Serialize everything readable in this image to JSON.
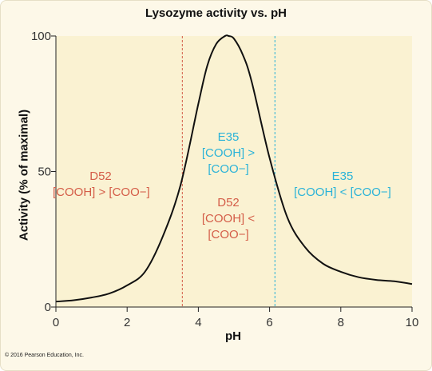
{
  "chart_data": {
    "type": "line",
    "title": "Lysozyme activity vs. pH",
    "xlabel": "pH",
    "ylabel": "Activity (% of maximal)",
    "xlim": [
      0,
      10
    ],
    "ylim": [
      0,
      100
    ],
    "xticks": [
      0,
      2,
      4,
      6,
      8,
      10
    ],
    "yticks": [
      0,
      50,
      100
    ],
    "grid": false,
    "series": [
      {
        "x": [
          0,
          0.5,
          1,
          1.5,
          2,
          2.5,
          3,
          3.5,
          4,
          4.25,
          4.5,
          4.75,
          4.85,
          5,
          5.25,
          5.5,
          6,
          6.5,
          7,
          7.5,
          8,
          8.5,
          9,
          9.5,
          10
        ],
        "y": [
          2,
          2.5,
          3.5,
          5,
          8,
          13,
          26,
          45,
          75,
          89,
          97,
          100,
          100,
          99,
          93,
          83,
          55,
          33,
          22,
          16,
          13,
          11,
          10,
          9.5,
          8.5
        ]
      }
    ],
    "vlines": [
      3.55,
      6.15
    ],
    "annotations": [
      {
        "key": "left_red",
        "lines": [
          "D52",
          "[COOH] > [COO−]"
        ]
      },
      {
        "key": "center_blue",
        "lines": [
          "E35",
          "[COOH] >",
          "[COO−]"
        ]
      },
      {
        "key": "center_red",
        "lines": [
          "D52",
          "[COOH] <",
          "[COO−]"
        ]
      },
      {
        "key": "right_blue",
        "lines": [
          "E35",
          "[COOH] < [COO−]"
        ]
      }
    ],
    "colors": {
      "curve": "#111111",
      "red": "#d45d48",
      "blue": "#2bb3d8",
      "plot_bg": "#faf2d2",
      "figure_bg": "#fdf8e8"
    }
  },
  "copyright": "© 2016 Pearson Education, Inc."
}
